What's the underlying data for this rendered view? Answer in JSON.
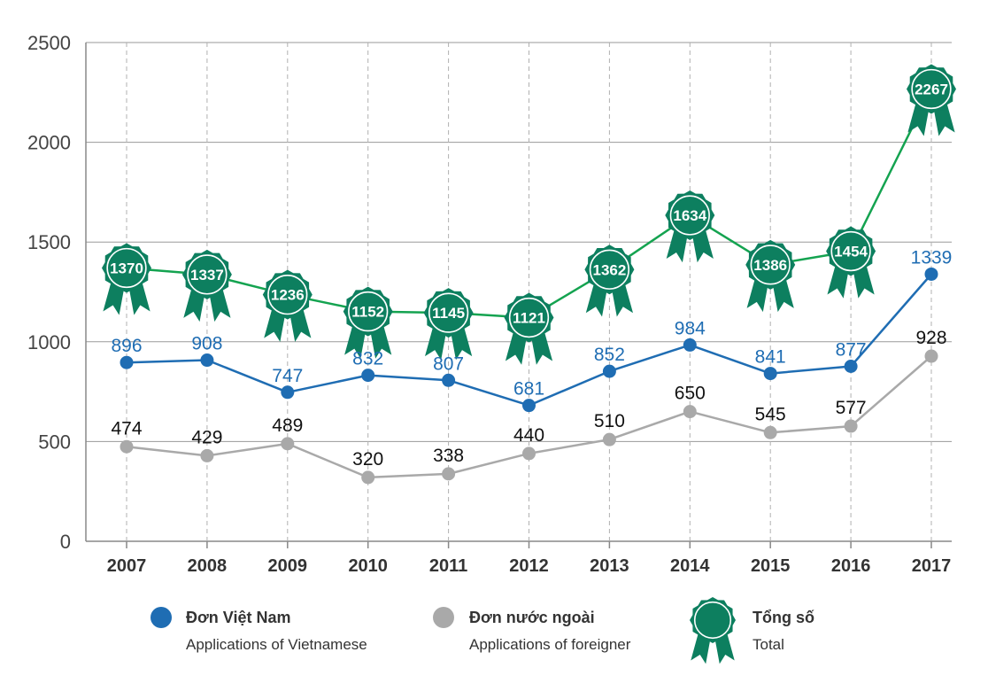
{
  "chart_data": {
    "type": "line",
    "x": [
      "2007",
      "2008",
      "2009",
      "2010",
      "2011",
      "2012",
      "2013",
      "2014",
      "2015",
      "2016",
      "2017"
    ],
    "ylim": [
      0,
      2500
    ],
    "yticks": [
      0,
      500,
      1000,
      1500,
      2000,
      2500
    ],
    "grid": true,
    "series": [
      {
        "name": "Đơn Việt Nam",
        "subtitle": "Applications of Vietnamese",
        "color": "#1f6db3",
        "marker": "circle",
        "values": [
          896,
          908,
          747,
          832,
          807,
          681,
          852,
          984,
          841,
          877,
          1339
        ]
      },
      {
        "name": "Đơn nước ngoài",
        "subtitle": "Applications of foreigner",
        "color": "#a9a9a9",
        "marker": "circle",
        "values": [
          474,
          429,
          489,
          320,
          338,
          440,
          510,
          650,
          545,
          577,
          928
        ]
      },
      {
        "name": "Tổng số",
        "subtitle": "Total",
        "color": "#14a350",
        "marker": "rosette",
        "marker_color": "#0d7f5f",
        "values": [
          1370,
          1337,
          1236,
          1152,
          1145,
          1121,
          1362,
          1634,
          1386,
          1454,
          2267
        ]
      }
    ],
    "legend": "bottom"
  }
}
